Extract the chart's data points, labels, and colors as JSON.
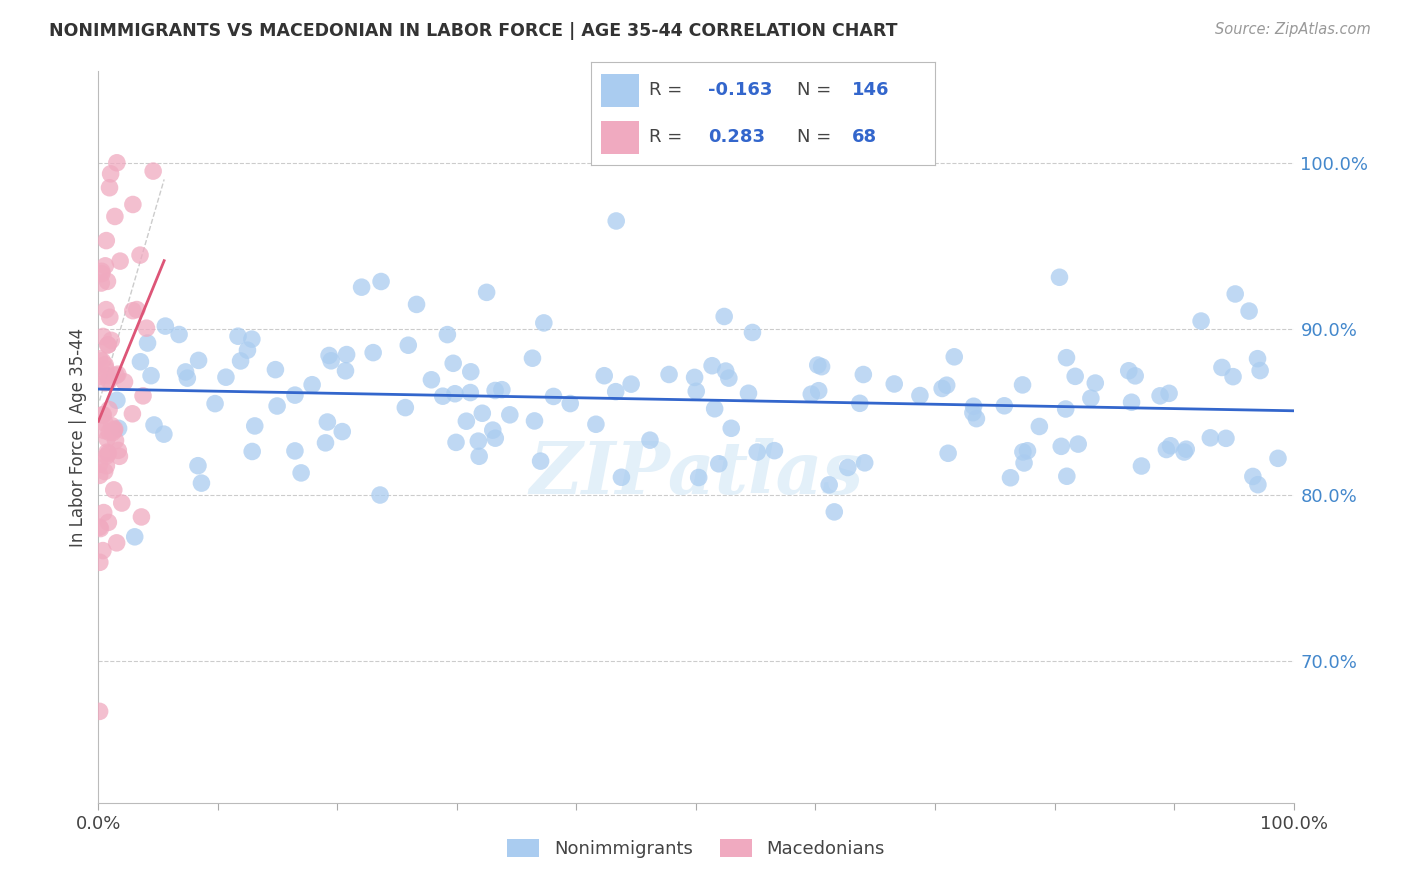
{
  "title": "NONIMMIGRANTS VS MACEDONIAN IN LABOR FORCE | AGE 35-44 CORRELATION CHART",
  "source": "Source: ZipAtlas.com",
  "ylabel": "In Labor Force | Age 35-44",
  "ytick_labels": [
    "100.0%",
    "90.0%",
    "80.0%",
    "70.0%"
  ],
  "ytick_values": [
    1.0,
    0.9,
    0.8,
    0.7
  ],
  "xlim": [
    0.0,
    1.0
  ],
  "ylim": [
    0.615,
    1.055
  ],
  "blue_R": -0.163,
  "blue_N": 146,
  "pink_R": 0.283,
  "pink_N": 68,
  "legend_label_blue": "Nonimmigrants",
  "legend_label_pink": "Macedonians",
  "blue_color": "#aaccf0",
  "pink_color": "#f0aac0",
  "blue_line_color": "#3366cc",
  "pink_line_color": "#dd5577",
  "watermark": "ZIPatlas",
  "blue_seed": 42,
  "pink_seed": 7
}
